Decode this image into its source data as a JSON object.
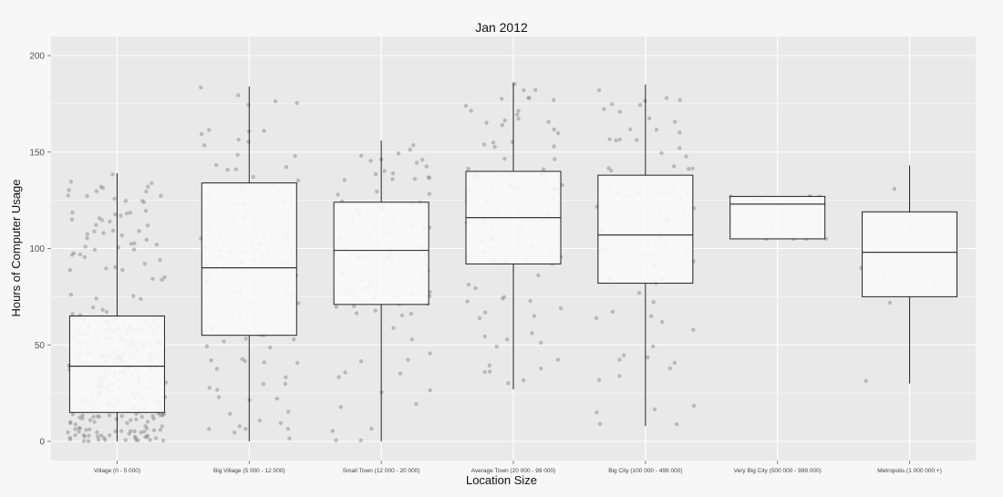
{
  "chart_data": {
    "type": "boxplot",
    "title": "Jan 2012",
    "xlabel": "Location Size",
    "ylabel": "Hours of Computer Usage",
    "ylim": [
      0,
      200
    ],
    "yticks": [
      0,
      50,
      100,
      150,
      200
    ],
    "grid": true,
    "colors": {
      "panel": "#e9e9e9",
      "grid": "#ffffff",
      "box": "#f9f9f9",
      "point": "#8a8a8a"
    },
    "categories": [
      "Village (0 - 5 000)",
      "Big Village (5 000 - 12 000)",
      "Small Town (12 000 - 20 000)",
      "Average Town (20 000 - 99 000)",
      "Big City (100 000 - 499 000)",
      "Very Big City (500 000 - 999 000)",
      "Metropolis (1 000 000 +)"
    ],
    "boxes": [
      {
        "min": 0,
        "q1": 15,
        "median": 39,
        "q3": 65,
        "max": 139
      },
      {
        "min": 0,
        "q1": 55,
        "median": 90,
        "q3": 134,
        "max": 184
      },
      {
        "min": 0,
        "q1": 71,
        "median": 99,
        "q3": 124,
        "max": 156
      },
      {
        "min": 27,
        "q1": 92,
        "median": 116,
        "q3": 140,
        "max": 186
      },
      {
        "min": 8,
        "q1": 82,
        "median": 107,
        "q3": 138,
        "max": 185
      },
      {
        "min": 105,
        "q1": 105,
        "median": 123,
        "q3": 127,
        "max": 127
      },
      {
        "min": 30,
        "q1": 75,
        "median": 98,
        "q3": 119,
        "max": 143
      }
    ],
    "jitter_counts": [
      300,
      110,
      95,
      100,
      80,
      12,
      9
    ]
  }
}
